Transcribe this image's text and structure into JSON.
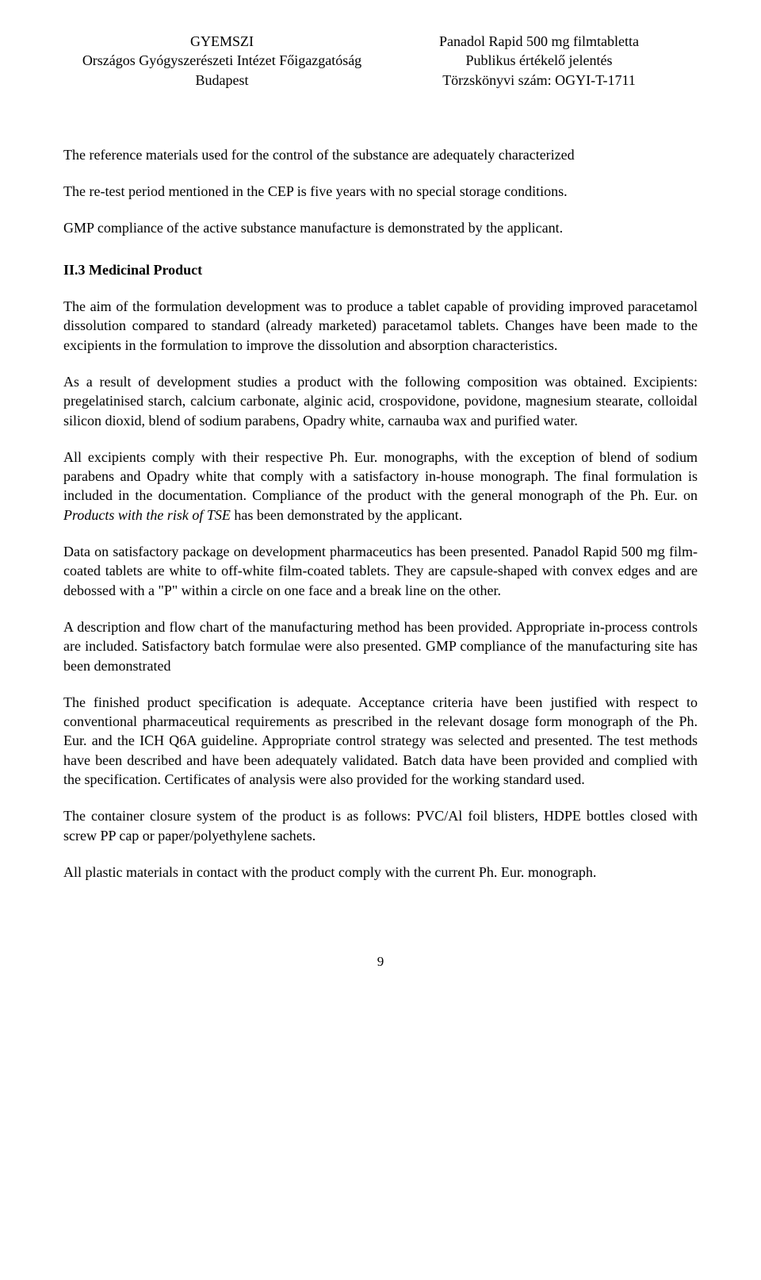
{
  "header": {
    "left": {
      "line1": "GYEMSZI",
      "line2": "Országos Gyógyszerészeti Intézet Főigazgatóság",
      "line3": "Budapest"
    },
    "right": {
      "line1": "Panadol Rapid 500 mg filmtabletta",
      "line2": "Publikus értékelő jelentés",
      "line3": "Törzskönyvi szám: OGYI-T-1711"
    }
  },
  "body": {
    "p1": "The reference materials used for the control of the substance are adequately characterized",
    "p2": "The re-test period mentioned in the CEP is five years with no special storage conditions.",
    "p3": "GMP compliance of the active substance manufacture is demonstrated by the applicant.",
    "h1": "II.3 Medicinal Product",
    "p4": "The aim of the formulation development was to produce a tablet capable of providing improved paracetamol dissolution compared to standard (already marketed) paracetamol tablets. Changes have been made to the excipients in the formulation to improve the dissolution and absorption characteristics.",
    "p5": "As a result of development studies a product with the following composition was obtained. Excipients: pregelatinised starch, calcium carbonate, alginic acid, crospovidone, povidone, magnesium stearate, colloidal silicon dioxid, blend of sodium parabens, Opadry white, carnauba wax and purified water.",
    "p6_part1": "All excipients comply with their respective Ph. Eur. monographs, with the exception of blend of sodium parabens and Opadry white that comply with a satisfactory in-house monograph. The final formulation is included in the documentation. Compliance of the product with the general monograph of the Ph. Eur. on ",
    "p6_italic": "Products with the risk of TSE",
    "p6_part2": " has been demonstrated by the applicant.",
    "p7": "Data on satisfactory package on development pharmaceutics has been presented. Panadol Rapid 500 mg film-coated tablets are white to off-white film-coated tablets. They are capsule-shaped with convex edges and are debossed with a \"P\" within a circle on one face and a break line on the other.",
    "p8": "A description and flow chart of the manufacturing method has been provided. Appropriate in-process controls are included. Satisfactory batch formulae were also presented. GMP compliance of the manufacturing site has been demonstrated",
    "p9": "The finished product specification is adequate. Acceptance criteria have been justified with respect to conventional pharmaceutical requirements as prescribed in the relevant dosage form monograph of the Ph. Eur. and the ICH Q6A guideline. Appropriate control strategy was selected and presented. The test methods have been described and have been adequately validated. Batch data have been provided and complied with the specification. Certificates of analysis were also provided for the working standard used.",
    "p10": "The container closure system of the product is as follows: PVC/Al foil blisters, HDPE bottles closed with screw PP cap or paper/polyethylene sachets.",
    "p11": "All plastic materials in contact with the product comply with the current Ph. Eur. monograph."
  },
  "page_number": "9"
}
